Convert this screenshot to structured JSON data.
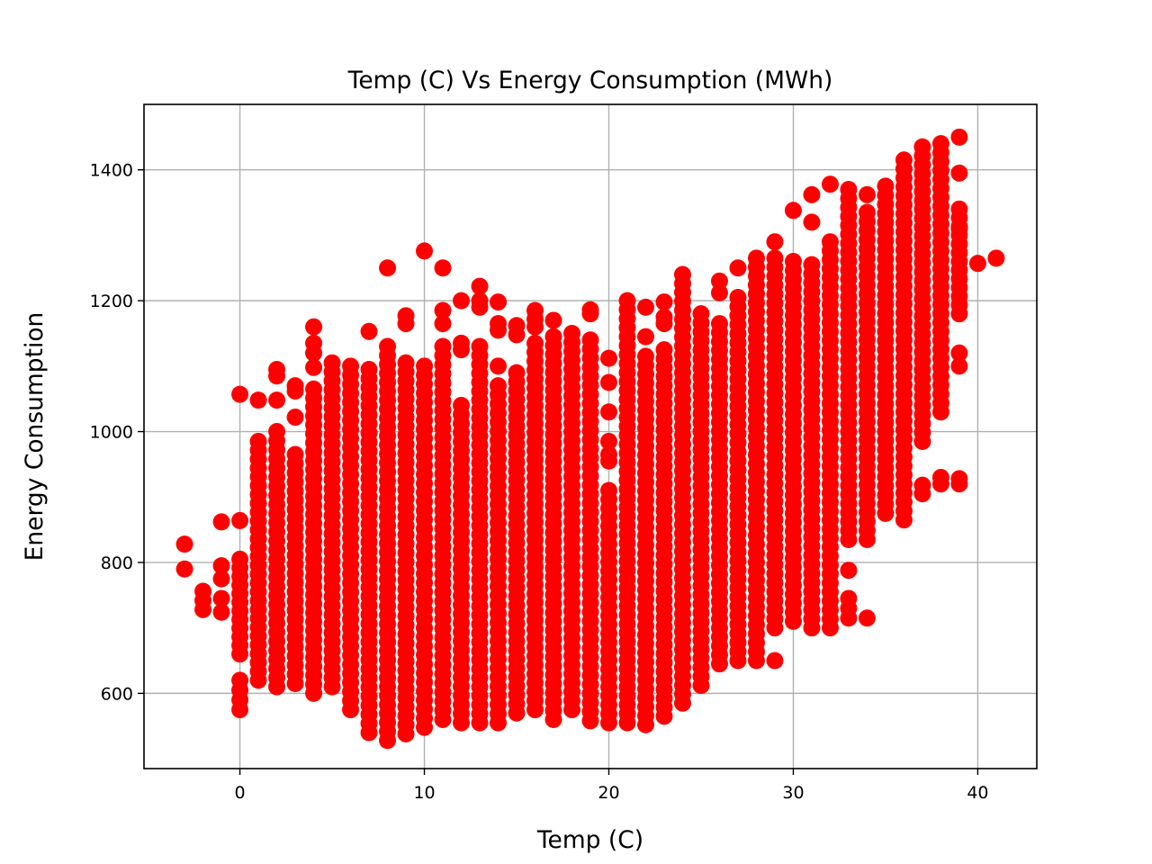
{
  "chart_data": {
    "type": "scatter",
    "title": "Temp (C) Vs Energy Consumption (MWh)",
    "xlabel": "Temp (C)",
    "ylabel": "Energy Consumption",
    "xlim": [
      -5.2,
      43.2
    ],
    "ylim": [
      485,
      1500
    ],
    "x_ticks": [
      0,
      10,
      20,
      30,
      40
    ],
    "y_ticks": [
      600,
      800,
      1000,
      1200,
      1400
    ],
    "grid": true,
    "marker_color": "#ff0000",
    "marker": "circle",
    "columns": [
      {
        "x": -3,
        "ranges": [],
        "points": [
          790,
          828
        ]
      },
      {
        "x": -2,
        "ranges": [],
        "points": [
          728,
          742,
          756
        ]
      },
      {
        "x": -1,
        "ranges": [],
        "points": [
          724,
          745,
          775,
          795,
          862
        ]
      },
      {
        "x": 0,
        "ranges": [
          [
            575,
            620
          ],
          [
            660,
            805
          ]
        ],
        "points": [
          864,
          1057
        ]
      },
      {
        "x": 1,
        "ranges": [
          [
            620,
            985
          ]
        ],
        "points": [
          1048
        ]
      },
      {
        "x": 2,
        "ranges": [
          [
            610,
            1000
          ]
        ],
        "points": [
          1048,
          1085,
          1095
        ]
      },
      {
        "x": 3,
        "ranges": [
          [
            615,
            965
          ]
        ],
        "points": [
          1022,
          1062,
          1070
        ]
      },
      {
        "x": 4,
        "ranges": [
          [
            600,
            1065
          ]
        ],
        "points": [
          1098,
          1120,
          1135,
          1160
        ]
      },
      {
        "x": 5,
        "ranges": [
          [
            610,
            1105
          ]
        ],
        "points": []
      },
      {
        "x": 6,
        "ranges": [
          [
            575,
            1100
          ]
        ],
        "points": []
      },
      {
        "x": 7,
        "ranges": [
          [
            540,
            1095
          ]
        ],
        "points": [
          1153
        ]
      },
      {
        "x": 8,
        "ranges": [
          [
            528,
            1130
          ]
        ],
        "points": [
          1250
        ]
      },
      {
        "x": 9,
        "ranges": [
          [
            538,
            1105
          ]
        ],
        "points": [
          1165,
          1177
        ]
      },
      {
        "x": 10,
        "ranges": [
          [
            548,
            1100
          ]
        ],
        "points": [
          1276
        ]
      },
      {
        "x": 11,
        "ranges": [
          [
            560,
            1130
          ]
        ],
        "points": [
          1165,
          1185,
          1250
        ]
      },
      {
        "x": 12,
        "ranges": [
          [
            555,
            1040
          ]
        ],
        "points": [
          1125,
          1135,
          1200
        ]
      },
      {
        "x": 13,
        "ranges": [
          [
            555,
            1130
          ]
        ],
        "points": [
          1190,
          1200,
          1222
        ]
      },
      {
        "x": 14,
        "ranges": [
          [
            555,
            1070
          ]
        ],
        "points": [
          1100,
          1155,
          1165,
          1198
        ]
      },
      {
        "x": 15,
        "ranges": [
          [
            570,
            1090
          ]
        ],
        "points": [
          1148,
          1162
        ]
      },
      {
        "x": 16,
        "ranges": [
          [
            575,
            1135
          ]
        ],
        "points": [
          1160,
          1172,
          1185
        ]
      },
      {
        "x": 17,
        "ranges": [
          [
            560,
            1145
          ]
        ],
        "points": [
          1170
        ]
      },
      {
        "x": 18,
        "ranges": [
          [
            575,
            1150
          ]
        ],
        "points": []
      },
      {
        "x": 19,
        "ranges": [
          [
            558,
            1140
          ]
        ],
        "points": [
          1180,
          1186
        ]
      },
      {
        "x": 20,
        "ranges": [
          [
            555,
            910
          ]
        ],
        "points": [
          955,
          965,
          985,
          1030,
          1075,
          1112
        ]
      },
      {
        "x": 21,
        "ranges": [
          [
            555,
            1200
          ]
        ],
        "points": []
      },
      {
        "x": 22,
        "ranges": [
          [
            552,
            1115
          ]
        ],
        "points": [
          1145,
          1190
        ]
      },
      {
        "x": 23,
        "ranges": [
          [
            565,
            1125
          ]
        ],
        "points": [
          1165,
          1175,
          1198
        ]
      },
      {
        "x": 24,
        "ranges": [
          [
            585,
            1240
          ]
        ],
        "points": []
      },
      {
        "x": 25,
        "ranges": [
          [
            612,
            1180
          ]
        ],
        "points": []
      },
      {
        "x": 26,
        "ranges": [
          [
            645,
            1165
          ]
        ],
        "points": [
          1212,
          1230
        ]
      },
      {
        "x": 27,
        "ranges": [
          [
            650,
            1205
          ]
        ],
        "points": [
          1250
        ]
      },
      {
        "x": 28,
        "ranges": [
          [
            650,
            1265
          ]
        ],
        "points": []
      },
      {
        "x": 29,
        "ranges": [
          [
            700,
            1265
          ]
        ],
        "points": [
          650,
          1290
        ]
      },
      {
        "x": 30,
        "ranges": [
          [
            710,
            1260
          ]
        ],
        "points": [
          1338
        ]
      },
      {
        "x": 31,
        "ranges": [
          [
            700,
            1255
          ]
        ],
        "points": [
          1320,
          1362
        ]
      },
      {
        "x": 32,
        "ranges": [
          [
            700,
            1290
          ]
        ],
        "points": [
          1378
        ]
      },
      {
        "x": 33,
        "ranges": [
          [
            835,
            1370
          ]
        ],
        "points": [
          715,
          730,
          745,
          788
        ]
      },
      {
        "x": 34,
        "ranges": [
          [
            835,
            1335
          ]
        ],
        "points": [
          715,
          1362
        ]
      },
      {
        "x": 35,
        "ranges": [
          [
            875,
            1375
          ]
        ],
        "points": []
      },
      {
        "x": 36,
        "ranges": [
          [
            865,
            1415
          ]
        ],
        "points": []
      },
      {
        "x": 37,
        "ranges": [
          [
            985,
            1435
          ]
        ],
        "points": [
          905,
          918
        ]
      },
      {
        "x": 38,
        "ranges": [
          [
            1030,
            1440
          ]
        ],
        "points": [
          920,
          930
        ]
      },
      {
        "x": 39,
        "ranges": [
          [
            1100,
            1120
          ],
          [
            1180,
            1340
          ]
        ],
        "points": [
          920,
          928,
          1310,
          1395,
          1450
        ]
      },
      {
        "x": 40,
        "ranges": [],
        "points": [
          1257
        ]
      },
      {
        "x": 41,
        "ranges": [],
        "points": [
          1265
        ]
      }
    ]
  }
}
